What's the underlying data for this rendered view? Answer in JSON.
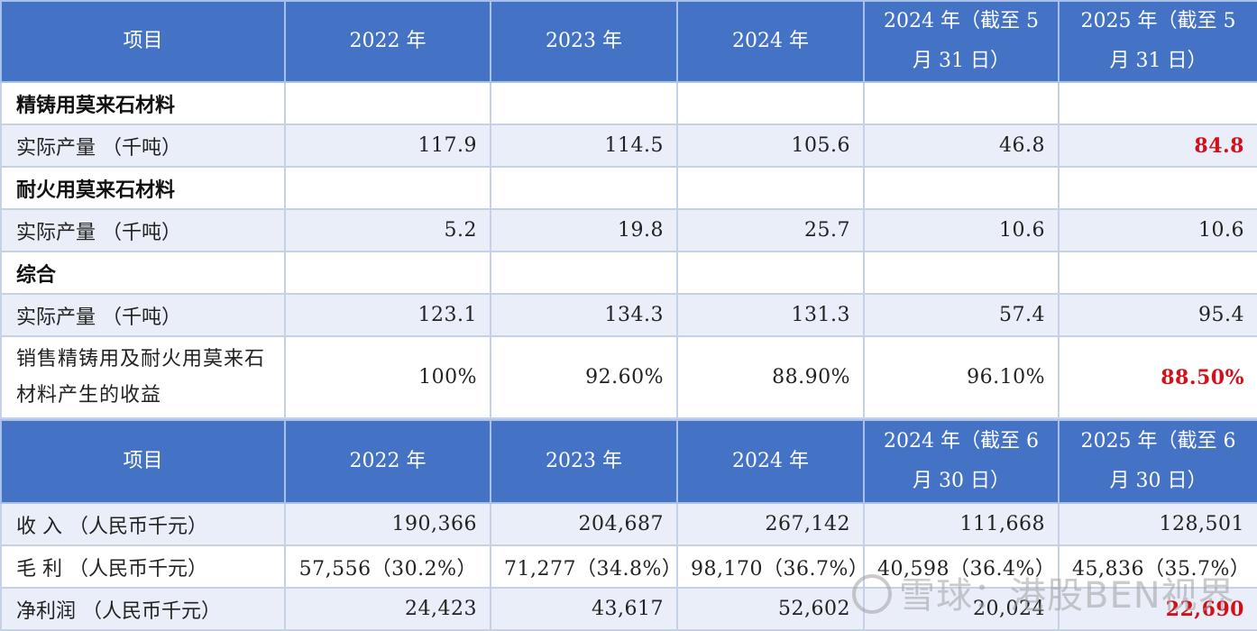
{
  "table1": {
    "headers": [
      "项目",
      "2022 年",
      "2023 年",
      "2024 年",
      "2024 年（截至 5 月 31 日）",
      "2025 年（截至 5 月 31 日）"
    ],
    "rows": [
      {
        "label": "精铸用莫来石材料",
        "type": "section",
        "values": [
          "",
          "",
          "",
          "",
          ""
        ]
      },
      {
        "label": "实际产量 （千吨）",
        "type": "data",
        "values": [
          "117.9",
          "114.5",
          "105.6",
          "46.8",
          "84.8"
        ],
        "highlight_last": true
      },
      {
        "label": "耐火用莫来石材料",
        "type": "section",
        "values": [
          "",
          "",
          "",
          "",
          ""
        ]
      },
      {
        "label": "实际产量 （千吨）",
        "type": "data",
        "values": [
          "5.2",
          "19.8",
          "25.7",
          "10.6",
          "10.6"
        ],
        "highlight_last": false
      },
      {
        "label": "综合",
        "type": "section",
        "values": [
          "",
          "",
          "",
          "",
          ""
        ]
      },
      {
        "label": "实际产量 （千吨）",
        "type": "data",
        "values": [
          "123.1",
          "134.3",
          "131.3",
          "57.4",
          "95.4"
        ],
        "highlight_last": false
      },
      {
        "label": "销售精铸用及耐火用莫来石材料产生的收益",
        "type": "data",
        "values": [
          "100%",
          "92.60%",
          "88.90%",
          "96.10%",
          "88.50%"
        ],
        "highlight_last": true
      }
    ]
  },
  "table2": {
    "headers": [
      "项目",
      "2022 年",
      "2023 年",
      "2024 年",
      "2024 年（截至 6 月 30 日）",
      "2025 年（截至 6 月 30 日）"
    ],
    "rows": [
      {
        "label": "收 入 （人民币千元）",
        "values": [
          "190,366",
          "204,687",
          "267,142",
          "111,668",
          "128,501"
        ],
        "highlight_last": false
      },
      {
        "label": "毛 利 （人民币千元）",
        "values": [
          "57,556（30.2%）",
          "71,277（34.8%）",
          "98,170（36.7%）",
          "40,598（36.4%）",
          "45,836（35.7%）"
        ],
        "highlight_last": false
      },
      {
        "label": "净利润 （人民币千元）",
        "values": [
          "24,423",
          "43,617",
          "52,602",
          "20,024",
          "22,690"
        ],
        "highlight_last": true
      }
    ]
  },
  "watermark": "雪球：港股BEN视界",
  "colors": {
    "header_bg": "#4472c4",
    "highlight": "#d0111b",
    "alt_row": "#e9eef8"
  }
}
